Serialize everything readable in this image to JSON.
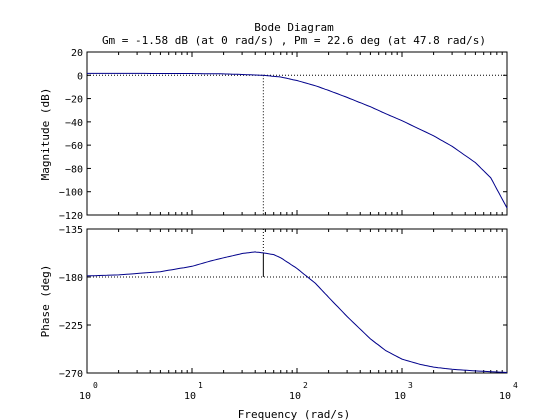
{
  "chart_data": {
    "type": "line",
    "title": "Bode Diagram",
    "subtitle": "Gm = -1.58 dB (at 0 rad/s) ,  Pm = 22.6 deg (at 47.8 rad/s)",
    "xlabel": "Frequency  (rad/s)",
    "x_scale": "log",
    "xlim": [
      1,
      10000
    ],
    "x_ticks": [
      {
        "base": "10",
        "exp": "0",
        "value": 1
      },
      {
        "base": "10",
        "exp": "1",
        "value": 10
      },
      {
        "base": "10",
        "exp": "2",
        "value": 100
      },
      {
        "base": "10",
        "exp": "3",
        "value": 1000
      },
      {
        "base": "10",
        "exp": "4",
        "value": 10000
      }
    ],
    "grid": false,
    "line_color": "#00008b",
    "crossover_frequency": 47.8,
    "magnitude": {
      "ylabel": "Magnitude (dB)",
      "ylim": [
        -120,
        20
      ],
      "yticks": [
        "20",
        "0",
        "−20",
        "−40",
        "−60",
        "−80",
        "−100",
        "−120"
      ],
      "ytick_values": [
        20,
        0,
        -20,
        -40,
        -60,
        -80,
        -100,
        -120
      ],
      "reference_y": 0,
      "x": [
        1,
        3,
        10,
        20,
        30,
        47.8,
        70,
        100,
        150,
        200,
        300,
        500,
        700,
        1000,
        2000,
        3000,
        5000,
        7000,
        10000
      ],
      "y": [
        1.6,
        1.6,
        1.5,
        1.2,
        0.7,
        0,
        -1.5,
        -4.5,
        -9,
        -13,
        -19,
        -27,
        -33,
        -39,
        -52,
        -61,
        -75,
        -88,
        -114
      ]
    },
    "phase": {
      "ylabel": "Phase (deg)",
      "ylim": [
        -270,
        -135
      ],
      "yticks": [
        "−135",
        "−180",
        "−225",
        "−270"
      ],
      "ytick_values": [
        -135,
        -180,
        -225,
        -270
      ],
      "reference_y": -180,
      "margin_marker": {
        "x": 47.8,
        "from": -180,
        "to": -157.4
      },
      "x": [
        1,
        2,
        5,
        10,
        15,
        20,
        30,
        40,
        47.8,
        60,
        70,
        100,
        150,
        200,
        300,
        500,
        700,
        1000,
        1500,
        2000,
        3000,
        5000,
        10000
      ],
      "y": [
        -179,
        -178,
        -175,
        -170,
        -165,
        -162,
        -158,
        -156.5,
        -157.4,
        -159,
        -162,
        -172,
        -186,
        -199,
        -217,
        -238,
        -249,
        -257,
        -262,
        -264.5,
        -266.5,
        -268,
        -269.5
      ]
    }
  }
}
